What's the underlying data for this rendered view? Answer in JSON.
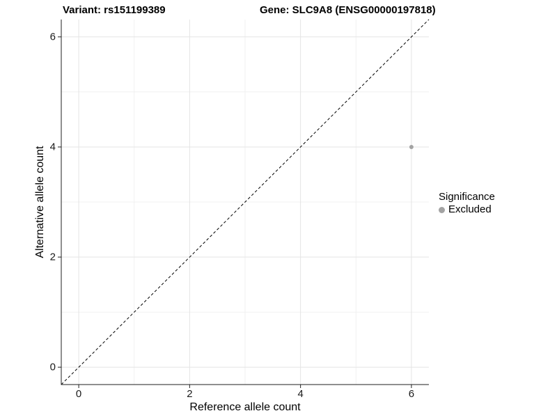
{
  "header": {
    "variant_title": "Variant: rs151199389",
    "gene_title": "Gene: SLC9A8 (ENSG00000197818)"
  },
  "legend": {
    "title": "Significance",
    "items": [
      {
        "label": "Excluded",
        "color": "#a3a3a3"
      }
    ]
  },
  "colors": {
    "background": "#ffffff",
    "grid_major": "#e4e4e4",
    "grid_minor": "#f0f0f0",
    "axis": "#1f1f1f",
    "tick_text": "#1a1a1a",
    "title_text": "#000000",
    "point": "#a3a3a3",
    "reference_line": "#000000"
  },
  "chart_data": {
    "type": "scatter",
    "title": "Variant: rs151199389 / Gene: SLC9A8 (ENSG00000197818)",
    "xlabel": "Reference allele count",
    "ylabel": "Alternative allele count",
    "xlim": [
      -0.315,
      6.315
    ],
    "ylim": [
      -0.315,
      6.315
    ],
    "xticks": [
      0,
      2,
      4,
      6
    ],
    "yticks": [
      0,
      2,
      4,
      6
    ],
    "xminor_ticks": [
      1,
      3,
      5
    ],
    "yminor_ticks": [
      1,
      3,
      5
    ],
    "grid": "on",
    "legend_position": "right",
    "series": [
      {
        "name": "Excluded",
        "color": "#a3a3a3",
        "points": [
          {
            "x": 6,
            "y": 4
          }
        ]
      }
    ],
    "reference_line": {
      "style": "dashed",
      "slope": 1,
      "intercept": 0,
      "color": "#000000"
    }
  }
}
